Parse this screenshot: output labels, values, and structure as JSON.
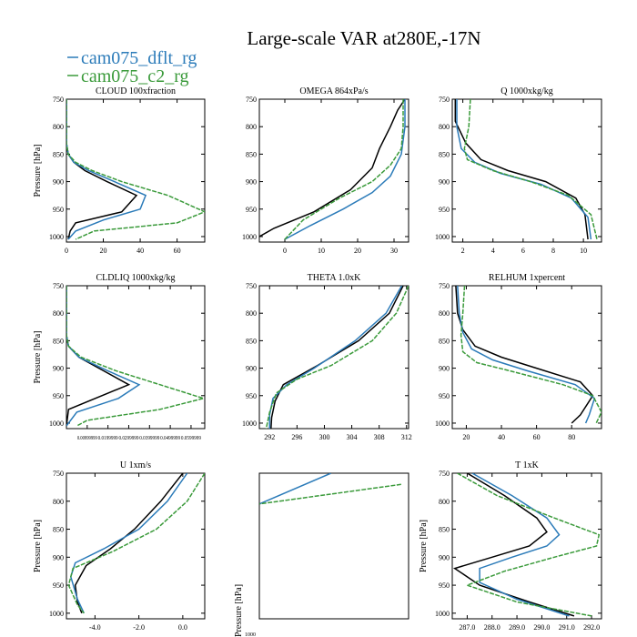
{
  "title": "Large-scale VAR at280E,-17N",
  "legend": [
    {
      "name": "cam075_dflt_rg",
      "color": "#2b7bb9"
    },
    {
      "name": "cam075_c2_rg",
      "color": "#3a9a3a"
    }
  ],
  "colors": {
    "black": "#000000",
    "blue": "#2b7bb9",
    "green": "#3a9a3a"
  },
  "chart_data": [
    {
      "type": "line",
      "title": "CLOUD 100xfraction",
      "ylabel": "Pressure [hPa]",
      "xlim": [
        0,
        75
      ],
      "ylim": [
        1010,
        750
      ],
      "xticks": [
        0,
        20,
        40,
        60
      ],
      "xticklabels": [
        "0",
        "20",
        "40",
        "60"
      ],
      "yticks": [
        750,
        800,
        850,
        900,
        950,
        1000
      ],
      "series": [
        {
          "color": "black",
          "x": [
            0,
            0,
            0,
            1,
            4,
            10,
            22,
            38,
            30,
            5,
            2,
            1
          ],
          "y": [
            750,
            800,
            830,
            850,
            865,
            880,
            900,
            925,
            955,
            975,
            990,
            1005
          ]
        },
        {
          "color": "blue",
          "x": [
            0,
            0,
            0,
            1,
            4,
            12,
            26,
            43,
            40,
            20,
            5,
            1
          ],
          "y": [
            750,
            800,
            830,
            850,
            865,
            880,
            900,
            925,
            950,
            970,
            990,
            1005
          ]
        },
        {
          "color": "green",
          "x": [
            0,
            0,
            0,
            1,
            5,
            14,
            30,
            55,
            75,
            60,
            15,
            5
          ],
          "y": [
            750,
            800,
            830,
            850,
            865,
            880,
            900,
            925,
            955,
            975,
            990,
            1005
          ]
        }
      ]
    },
    {
      "type": "line",
      "title": "OMEGA 864xPa/s",
      "ylabel": "",
      "xlim": [
        -7,
        34
      ],
      "ylim": [
        1010,
        750
      ],
      "xticks": [
        0,
        10,
        20,
        30
      ],
      "xticklabels": [
        "0",
        "10",
        "20",
        "30"
      ],
      "yticks": [
        750,
        800,
        850,
        900,
        950,
        1000
      ],
      "series": [
        {
          "color": "black",
          "x": [
            33,
            31,
            29,
            26,
            24,
            18,
            8,
            -3,
            -7
          ],
          "y": [
            750,
            770,
            800,
            840,
            875,
            915,
            955,
            985,
            1000
          ]
        },
        {
          "color": "blue",
          "x": [
            33,
            33,
            32,
            29,
            24,
            16,
            7,
            0
          ],
          "y": [
            750,
            800,
            850,
            890,
            920,
            950,
            980,
            1005
          ]
        },
        {
          "color": "green",
          "x": [
            32.5,
            32.5,
            32,
            29,
            24,
            15,
            5,
            0
          ],
          "y": [
            750,
            800,
            840,
            870,
            900,
            930,
            970,
            1005
          ]
        }
      ]
    },
    {
      "type": "line",
      "title": "Q 1000xkg/kg",
      "ylabel": "",
      "xlim": [
        1.3,
        11.2
      ],
      "ylim": [
        1010,
        750
      ],
      "xticks": [
        2,
        4,
        6,
        8,
        10
      ],
      "xticklabels": [
        "2",
        "4",
        "6",
        "8",
        "10"
      ],
      "yticks": [
        750,
        800,
        850,
        900,
        950,
        1000
      ],
      "series": [
        {
          "color": "black",
          "x": [
            1.5,
            1.5,
            2.2,
            3.2,
            5,
            7.5,
            9.5,
            10.1,
            10.3
          ],
          "y": [
            750,
            790,
            830,
            860,
            880,
            900,
            930,
            960,
            1005
          ]
        },
        {
          "color": "blue",
          "x": [
            1.6,
            1.6,
            1.9,
            2.8,
            4.5,
            7.2,
            9.2,
            10.3,
            10.5
          ],
          "y": [
            750,
            800,
            840,
            865,
            885,
            905,
            930,
            965,
            1005
          ]
        },
        {
          "color": "green",
          "x": [
            2.5,
            2.4,
            2.1,
            2.3,
            4,
            6.5,
            9,
            10.5,
            10.9
          ],
          "y": [
            750,
            800,
            840,
            860,
            880,
            900,
            925,
            960,
            1005
          ]
        }
      ]
    },
    {
      "type": "line",
      "title": "CLDLIQ 1000xkg/kg",
      "ylabel": "Pressure [hPa]",
      "xlim": [
        0,
        0.0666
      ],
      "ylim": [
        1010,
        750
      ],
      "xticks": [
        0.00999999,
        0.0199999,
        0.0299999,
        0.0399999,
        0.0499999,
        0.0599999
      ],
      "xticklabels": [
        "0.00999999",
        "0.0199999",
        "0.0299999",
        "0.0399999",
        "0.0499999",
        "0.0599999"
      ],
      "yticks": [
        750,
        800,
        850,
        900,
        950,
        1000
      ],
      "series": [
        {
          "color": "black",
          "x": [
            0,
            0,
            0,
            0.001,
            0.006,
            0.018,
            0.03,
            0.001,
            0
          ],
          "y": [
            750,
            800,
            840,
            860,
            880,
            905,
            930,
            975,
            1005
          ]
        },
        {
          "color": "blue",
          "x": [
            0,
            0,
            0,
            0.001,
            0.006,
            0.02,
            0.035,
            0.025,
            0.005,
            0
          ],
          "y": [
            750,
            800,
            840,
            860,
            880,
            905,
            930,
            955,
            980,
            1005
          ]
        },
        {
          "color": "green",
          "x": [
            0,
            0,
            0,
            0.001,
            0.007,
            0.024,
            0.045,
            0.066,
            0.045,
            0.01,
            0.005
          ],
          "y": [
            750,
            800,
            840,
            860,
            880,
            905,
            930,
            955,
            975,
            995,
            1005
          ]
        }
      ]
    },
    {
      "type": "line",
      "title": "THETA 1.0xK",
      "ylabel": "",
      "xlim": [
        290.5,
        312.3
      ],
      "ylim": [
        1010,
        750
      ],
      "xticks": [
        292,
        296,
        300,
        304,
        308,
        312
      ],
      "xticklabels": [
        "292",
        "296",
        "300",
        "304",
        "308",
        "312"
      ],
      "yticks": [
        750,
        800,
        850,
        900,
        950,
        1000
      ],
      "series": [
        {
          "color": "black",
          "x": [
            311.5,
            309.5,
            305,
            299,
            294,
            292.8,
            292.3,
            292.2
          ],
          "y": [
            750,
            800,
            850,
            895,
            930,
            960,
            990,
            1010
          ]
        },
        {
          "color": "blue",
          "x": [
            311.3,
            309,
            304.5,
            298.5,
            294.5,
            292.5,
            292,
            292
          ],
          "y": [
            750,
            800,
            850,
            900,
            930,
            955,
            985,
            1010
          ]
        },
        {
          "color": "green",
          "x": [
            312.3,
            310.5,
            307,
            301,
            296,
            293,
            292,
            291.5
          ],
          "y": [
            750,
            800,
            850,
            895,
            920,
            945,
            980,
            1010
          ]
        }
      ]
    },
    {
      "type": "line",
      "title": "RELHUM 1xpercent",
      "ylabel": "",
      "xlim": [
        12,
        97
      ],
      "ylim": [
        1010,
        750
      ],
      "xticks": [
        20,
        40,
        60,
        80
      ],
      "xticklabels": [
        "20",
        "40",
        "60",
        "80"
      ],
      "yticks": [
        750,
        800,
        850,
        900,
        950,
        1000
      ],
      "series": [
        {
          "color": "black",
          "x": [
            14,
            15,
            18,
            25,
            40,
            60,
            85,
            92,
            85,
            80
          ],
          "y": [
            750,
            800,
            830,
            860,
            880,
            900,
            925,
            950,
            985,
            1000
          ]
        },
        {
          "color": "blue",
          "x": [
            15,
            16,
            18,
            23,
            35,
            55,
            82,
            93,
            90,
            88
          ],
          "y": [
            750,
            800,
            835,
            865,
            885,
            905,
            930,
            955,
            985,
            1000
          ]
        },
        {
          "color": "green",
          "x": [
            19,
            18,
            17,
            18,
            26,
            45,
            75,
            92,
            97,
            94
          ],
          "y": [
            750,
            800,
            840,
            870,
            890,
            905,
            930,
            950,
            980,
            1000
          ]
        }
      ]
    },
    {
      "type": "line",
      "title": "U 1xm/s",
      "ylabel": "Pressure [hPa]",
      "xlim": [
        -5.3,
        1.0
      ],
      "ylim": [
        1010,
        750
      ],
      "xticks": [
        -4,
        -2,
        0
      ],
      "xticklabels": [
        "-4.0",
        "-2.0",
        "0.0"
      ],
      "yticks": [
        750,
        800,
        850,
        900,
        950,
        1000
      ],
      "series": [
        {
          "color": "black",
          "x": [
            0,
            -1,
            -2.2,
            -3.3,
            -4.4,
            -4.9,
            -4.8,
            -4.6
          ],
          "y": [
            750,
            800,
            850,
            885,
            915,
            950,
            980,
            1000
          ]
        },
        {
          "color": "blue",
          "x": [
            0.2,
            -0.7,
            -2,
            -3.6,
            -4.9,
            -5.1,
            -4.8,
            -4.5
          ],
          "y": [
            750,
            800,
            850,
            885,
            910,
            935,
            975,
            1000
          ]
        },
        {
          "color": "green",
          "x": [
            1,
            0.2,
            -1.2,
            -3.2,
            -5,
            -5.2,
            -4.8,
            -4.5
          ],
          "y": [
            750,
            800,
            850,
            890,
            920,
            950,
            985,
            1000
          ]
        }
      ]
    },
    {
      "type": "line",
      "title": "",
      "ylabel": "",
      "xlim": [
        0,
        10
      ],
      "ylim": [
        1010,
        750
      ],
      "xticks": [],
      "xticklabels": [],
      "yticks": [],
      "series": [
        {
          "color": "blue",
          "x": [
            4.8,
            0
          ],
          "y": [
            750,
            805
          ]
        },
        {
          "color": "green",
          "x": [
            9.5,
            0
          ],
          "y": [
            770,
            805
          ]
        }
      ]
    },
    {
      "type": "line",
      "title": "T 1xK",
      "ylabel": "Pressure [hPa]",
      "xlim": [
        286.4,
        292.4
      ],
      "ylim": [
        1010,
        750
      ],
      "xticks": [
        287,
        288,
        289,
        290,
        291,
        292
      ],
      "xticklabels": [
        "287.0",
        "288.0",
        "289.0",
        "290.0",
        "291.0",
        "292.0"
      ],
      "yticks": [
        750,
        800,
        850,
        900,
        950,
        1000
      ],
      "series": [
        {
          "color": "black",
          "x": [
            287,
            288.5,
            289.8,
            290.2,
            289.5,
            288,
            286.5,
            287.5,
            289.5,
            291.3
          ],
          "y": [
            750,
            790,
            830,
            855,
            880,
            900,
            920,
            950,
            980,
            1005
          ]
        },
        {
          "color": "blue",
          "x": [
            287.2,
            288.8,
            290.2,
            290.7,
            290.2,
            288.8,
            287.5,
            287.5,
            289,
            291.1
          ],
          "y": [
            750,
            790,
            830,
            860,
            880,
            900,
            920,
            945,
            975,
            1005
          ]
        },
        {
          "color": "green",
          "x": [
            286.6,
            288.2,
            290.5,
            292.3,
            292.2,
            290.5,
            288.5,
            287,
            289,
            292
          ],
          "y": [
            750,
            790,
            830,
            860,
            880,
            900,
            925,
            950,
            980,
            1005
          ]
        }
      ]
    }
  ],
  "truncated_axis": {
    "ylabel": "Pressure [hPa]",
    "tick": "1000"
  }
}
